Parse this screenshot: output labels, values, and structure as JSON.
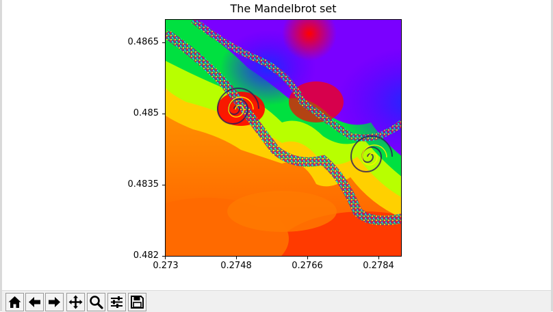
{
  "window": {
    "title": "The Mandelbrot set"
  },
  "chart_data": {
    "type": "heatmap",
    "title": "The Mandelbrot set",
    "xlabel": "",
    "ylabel": "",
    "xlim": [
      0.273,
      0.2797
    ],
    "ylim": [
      0.482,
      0.4887
    ],
    "x_ticks": [
      {
        "value": 0.273,
        "label": "0.273"
      },
      {
        "value": 0.2748,
        "label": "0.2748"
      },
      {
        "value": 0.2766,
        "label": "0.2766"
      },
      {
        "value": 0.2784,
        "label": "0.2784"
      }
    ],
    "y_ticks": [
      {
        "value": 0.482,
        "label": "0.482"
      },
      {
        "value": 0.4835,
        "label": "0.4835"
      },
      {
        "value": 0.485,
        "label": "0.485"
      },
      {
        "value": 0.4865,
        "label": "0.4865"
      }
    ],
    "colormap": "hsv",
    "grid": false
  },
  "toolbar": {
    "buttons": [
      {
        "name": "home-button",
        "icon": "home-icon"
      },
      {
        "name": "back-button",
        "icon": "arrow-left-icon"
      },
      {
        "name": "forward-button",
        "icon": "arrow-right-icon"
      },
      {
        "name": "pan-button",
        "icon": "move-icon"
      },
      {
        "name": "zoom-button",
        "icon": "magnifier-icon"
      },
      {
        "name": "configure-subplots-button",
        "icon": "sliders-icon"
      },
      {
        "name": "save-button",
        "icon": "floppy-disk-icon"
      }
    ]
  }
}
